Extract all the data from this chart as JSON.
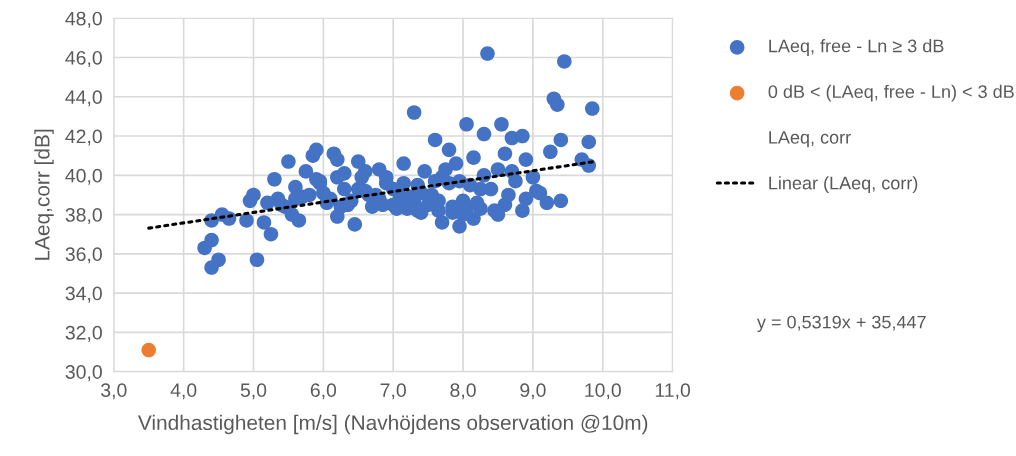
{
  "chart_data": {
    "type": "scatter",
    "xlabel": "Vindhastigheten [m/s] (Navhöjdens observation @10m)",
    "ylabel": "LAeq,corr [dB]",
    "xlim": [
      3,
      11
    ],
    "ylim": [
      30,
      48
    ],
    "xticks": [
      {
        "value": 3,
        "label": "3,0"
      },
      {
        "value": 4,
        "label": "4,0"
      },
      {
        "value": 5,
        "label": "5,0"
      },
      {
        "value": 6,
        "label": "6,0"
      },
      {
        "value": 7,
        "label": "7,0"
      },
      {
        "value": 8,
        "label": "8,0"
      },
      {
        "value": 9,
        "label": "9,0"
      },
      {
        "value": 10,
        "label": "10,0"
      },
      {
        "value": 11,
        "label": "11,0"
      }
    ],
    "yticks": [
      {
        "value": 30,
        "label": "30,0"
      },
      {
        "value": 32,
        "label": "32,0"
      },
      {
        "value": 34,
        "label": "34,0"
      },
      {
        "value": 36,
        "label": "36,0"
      },
      {
        "value": 38,
        "label": "38,0"
      },
      {
        "value": 40,
        "label": "40,0"
      },
      {
        "value": 42,
        "label": "42,0"
      },
      {
        "value": 44,
        "label": "44,0"
      },
      {
        "value": 46,
        "label": "46,0"
      },
      {
        "value": 48,
        "label": "48,0"
      }
    ],
    "grid": true,
    "legend": "right",
    "marker": "circle",
    "series": [
      {
        "name": "LAeq, free - Ln ≥ 3 dB",
        "color": "#4472c4",
        "x": [
          4.3,
          4.4,
          4.4,
          4.4,
          4.5,
          4.55,
          4.65,
          4.9,
          5.0,
          4.95,
          5.05,
          5.15,
          5.25,
          5.3,
          5.4,
          5.5,
          5.6,
          5.55,
          5.65,
          5.75,
          5.8,
          5.9,
          5.85,
          5.7,
          5.95,
          6.15,
          6.2,
          6.25,
          6.2,
          6.3,
          6.45,
          6.5,
          6.5,
          6.6,
          6.65,
          6.8,
          6.85,
          7.0,
          7.15,
          7.3,
          7.35,
          7.45,
          7.6,
          7.7,
          7.8,
          7.9,
          8.05,
          8.35,
          8.3,
          8.55,
          8.6,
          8.7,
          8.85,
          9.0,
          9.3,
          9.35,
          9.45,
          9.85,
          9.8,
          9.8,
          9.7,
          9.4,
          9.25,
          9.05,
          8.9,
          8.75,
          8.6,
          8.5,
          8.4,
          8.25,
          8.15,
          8.0,
          7.95,
          7.85,
          7.75,
          7.65,
          7.55,
          7.5,
          7.4,
          7.3,
          7.2,
          7.1,
          7.0,
          6.9,
          6.8,
          6.7,
          6.6,
          6.4,
          6.3,
          6.1,
          6.0,
          5.9,
          5.6,
          5.45,
          5.35,
          5.2,
          6.05,
          6.35,
          6.75,
          7.05,
          7.25,
          7.65,
          7.85,
          8.05,
          8.25,
          8.45,
          8.65,
          8.85,
          9.1,
          9.2,
          9.4,
          7.15,
          7.35,
          7.6,
          7.8,
          8.1,
          8.3,
          8.5,
          8.7,
          8.9,
          7.95,
          8.15,
          6.9,
          6.55,
          6.2,
          5.95,
          7.4,
          7.7,
          8.0,
          8.2
        ],
        "values": [
          36.3,
          37.7,
          36.7,
          35.3,
          35.7,
          38.0,
          37.8,
          37.7,
          39.0,
          38.7,
          35.7,
          37.6,
          37.0,
          39.8,
          38.5,
          40.7,
          39.4,
          38.0,
          37.7,
          40.2,
          39.0,
          41.3,
          41.0,
          38.9,
          39.6,
          41.1,
          40.8,
          38.4,
          37.9,
          40.1,
          37.5,
          40.7,
          39.3,
          40.2,
          39.0,
          40.3,
          38.5,
          39.3,
          40.6,
          43.2,
          38.2,
          40.2,
          41.8,
          39.9,
          41.3,
          40.6,
          42.6,
          46.2,
          42.1,
          42.6,
          41.1,
          41.9,
          42.0,
          39.9,
          43.9,
          43.6,
          45.8,
          43.4,
          41.7,
          40.5,
          40.8,
          41.8,
          41.2,
          39.2,
          38.8,
          39.7,
          38.5,
          38.0,
          39.3,
          38.3,
          40.9,
          38.7,
          39.7,
          38.4,
          40.3,
          38.2,
          39.0,
          38.5,
          39.1,
          38.6,
          38.3,
          38.9,
          38.5,
          39.6,
          38.8,
          38.4,
          39.2,
          38.7,
          39.3,
          38.8,
          39.1,
          39.8,
          38.8,
          38.4,
          38.8,
          38.6,
          38.6,
          38.5,
          39.0,
          38.3,
          38.9,
          38.7,
          38.1,
          38.3,
          39.3,
          38.2,
          39.0,
          38.2,
          39.1,
          38.6,
          38.7,
          39.6,
          39.5,
          39.7,
          39.6,
          39.5,
          40.0,
          40.3,
          40.2,
          40.8,
          37.4,
          37.8,
          39.9,
          39.9,
          39.9,
          39.7,
          38.1,
          37.6,
          38.0,
          38.6
        ]
      },
      {
        "name": "0 dB < (LAeq, free - Ln) < 3 dB",
        "color": "#ed7d31",
        "x": [
          3.5
        ],
        "values": [
          31.1
        ]
      },
      {
        "name": "Linear (LAeq, corr)",
        "color": "#000000",
        "type": "line",
        "line_style": "dotted",
        "marker": "none",
        "x": [
          3.5,
          9.9
        ],
        "values": [
          37.31,
          40.71
        ]
      }
    ],
    "annotations": [
      "LAeq, corr",
      "y = 0,5319x + 35,447"
    ]
  }
}
